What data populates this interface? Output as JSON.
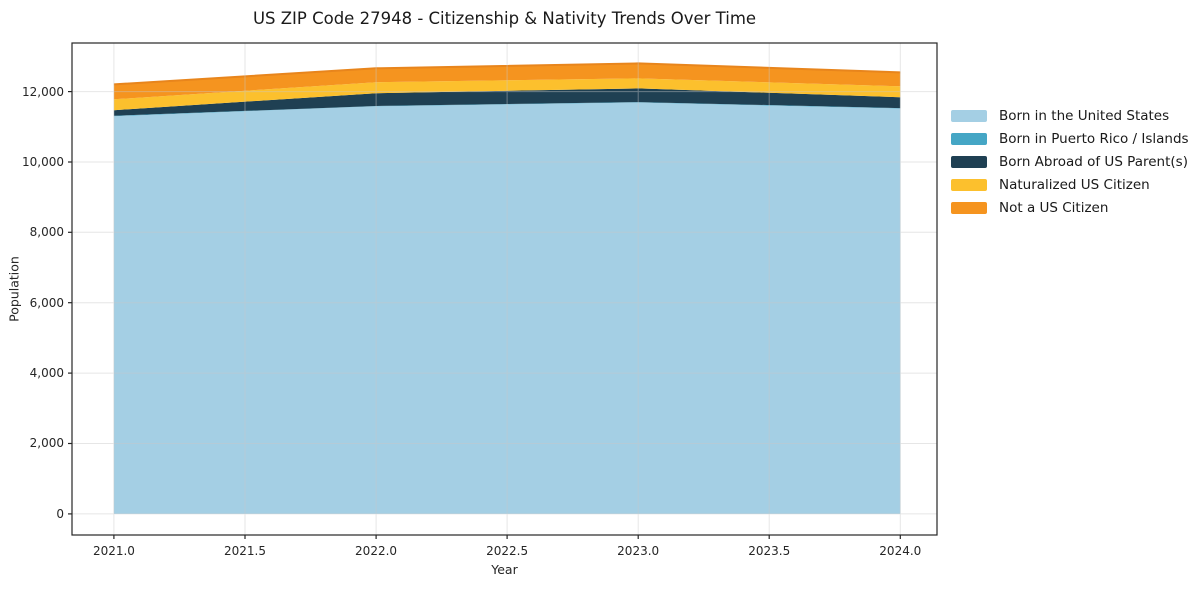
{
  "chart_data": {
    "type": "area",
    "stacked": true,
    "title": "US ZIP Code 27948 - Citizenship & Nativity Trends Over Time",
    "xlabel": "Year",
    "ylabel": "Population",
    "x": [
      2021.0,
      2022.0,
      2023.0,
      2024.0
    ],
    "series": [
      {
        "name": "Born in the United States",
        "color": "#A4CFE4",
        "values": [
          11300,
          11580,
          11690,
          11520
        ]
      },
      {
        "name": "Born in Puerto Rico / Islands",
        "color": "#45A6C5",
        "values": [
          10,
          10,
          10,
          10
        ]
      },
      {
        "name": "Born Abroad of US Parent(s)",
        "color": "#1F4053",
        "values": [
          160,
          365,
          390,
          310
        ]
      },
      {
        "name": "Naturalized US Citizen",
        "color": "#FCC02D",
        "values": [
          310,
          310,
          285,
          310
        ]
      },
      {
        "name": "Not a US Citizen",
        "color": "#F5941F",
        "values": [
          425,
          395,
          425,
          395
        ]
      }
    ],
    "xticks": {
      "values": [
        2021.0,
        2021.5,
        2022.0,
        2022.5,
        2023.0,
        2023.5,
        2024.0
      ],
      "labels": [
        "2021.0",
        "2021.5",
        "2022.0",
        "2022.5",
        "2023.0",
        "2023.5",
        "2024.0"
      ]
    },
    "yticks": {
      "values": [
        0,
        2000,
        4000,
        6000,
        8000,
        10000,
        12000
      ],
      "labels": [
        "0",
        "2,000",
        "4,000",
        "6,000",
        "8,000",
        "10,000",
        "12,000"
      ]
    },
    "xlim": [
      2020.84,
      2024.14
    ],
    "ylim": [
      -600,
      13380
    ],
    "grid": true,
    "legend_position": "right-outside",
    "colors": {
      "axis": "#262626",
      "grid": "#c8c8c8",
      "outer_edge": "#E8851C",
      "background": "#ffffff"
    }
  }
}
